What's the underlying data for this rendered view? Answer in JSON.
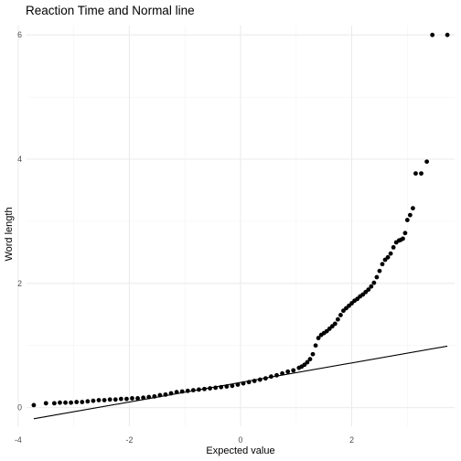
{
  "chart_data": {
    "type": "scatter",
    "title": "Reaction Time and Normal line",
    "xlabel": "Expected value",
    "ylabel": "Word length",
    "xlim": [
      -3.85,
      3.85
    ],
    "ylim": [
      -0.3,
      6.15
    ],
    "x_ticks": [
      -4,
      -2,
      0,
      2
    ],
    "x_tick_labels": [
      "-4",
      "-2",
      "0",
      "2"
    ],
    "y_ticks": [
      0,
      2,
      4,
      6
    ],
    "y_tick_labels": [
      "0",
      "2",
      "4",
      "6"
    ],
    "grid": true,
    "point_color": "#000000",
    "line_color": "#000000",
    "reference_line": {
      "x": [
        -3.72,
        3.72
      ],
      "y": [
        -0.18,
        0.99
      ]
    },
    "series": [
      {
        "x": [
          -3.72,
          -3.5,
          -3.35,
          -3.25,
          -3.15,
          -3.05,
          -2.95,
          -2.85,
          -2.75,
          -2.65,
          -2.55,
          -2.45,
          -2.35,
          -2.25,
          -2.15,
          -2.05,
          -1.95,
          -1.85,
          -1.75,
          -1.65,
          -1.55,
          -1.45,
          -1.35,
          -1.25,
          -1.15,
          -1.05,
          -0.95,
          -0.85,
          -0.75,
          -0.65,
          -0.55,
          -0.45,
          -0.35,
          -0.25,
          -0.15,
          -0.05,
          0.05,
          0.15,
          0.25,
          0.35,
          0.45,
          0.55,
          0.65,
          0.75,
          0.85,
          0.95,
          1.05,
          1.1,
          1.15,
          1.2,
          1.25,
          1.3,
          1.35,
          1.4,
          1.45,
          1.5,
          1.55,
          1.6,
          1.65,
          1.7,
          1.75,
          1.8,
          1.85,
          1.9,
          1.95,
          2.0,
          2.05,
          2.1,
          2.15,
          2.2,
          2.25,
          2.3,
          2.35,
          2.4,
          2.45,
          2.5,
          2.55,
          2.6,
          2.65,
          2.7,
          2.75,
          2.8,
          2.85,
          2.88,
          2.92,
          2.96,
          3.0,
          3.05,
          3.1,
          3.15,
          3.25,
          3.35,
          3.45,
          3.72
        ],
        "y": [
          0.04,
          0.07,
          0.07,
          0.08,
          0.08,
          0.08,
          0.09,
          0.09,
          0.1,
          0.11,
          0.12,
          0.12,
          0.13,
          0.13,
          0.14,
          0.14,
          0.15,
          0.15,
          0.16,
          0.17,
          0.18,
          0.2,
          0.21,
          0.23,
          0.25,
          0.26,
          0.27,
          0.28,
          0.29,
          0.3,
          0.31,
          0.32,
          0.33,
          0.34,
          0.35,
          0.37,
          0.39,
          0.41,
          0.43,
          0.45,
          0.47,
          0.5,
          0.52,
          0.55,
          0.58,
          0.6,
          0.64,
          0.66,
          0.69,
          0.73,
          0.78,
          0.86,
          1.0,
          1.12,
          1.17,
          1.2,
          1.23,
          1.27,
          1.31,
          1.35,
          1.42,
          1.49,
          1.56,
          1.6,
          1.64,
          1.68,
          1.72,
          1.75,
          1.79,
          1.82,
          1.86,
          1.9,
          1.95,
          2.01,
          2.1,
          2.2,
          2.31,
          2.38,
          2.42,
          2.48,
          2.58,
          2.66,
          2.69,
          2.7,
          2.72,
          2.81,
          3.02,
          3.1,
          3.21,
          3.77,
          3.77,
          3.96,
          6.0,
          6.0
        ]
      }
    ]
  }
}
